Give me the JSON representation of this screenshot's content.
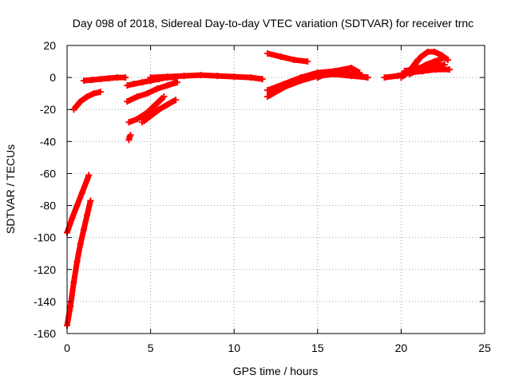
{
  "chart_data": {
    "type": "scatter",
    "title": "Day 098 of 2018, Sidereal Day-to-day VTEC variation (SDTVAR) for receiver trnc",
    "xlabel": "GPS time / hours",
    "ylabel": "SDTVAR / TECUs",
    "xlim": [
      0,
      25
    ],
    "ylim": [
      -160,
      20
    ],
    "xticks": [
      "0",
      "5",
      "10",
      "15",
      "20",
      "25"
    ],
    "yticks": [
      "20",
      "0",
      "-20",
      "-40",
      "-60",
      "-80",
      "-100",
      "-120",
      "-140",
      "-160"
    ],
    "grid": true,
    "marker": "plus",
    "color": "#ff0000",
    "segments": [
      {
        "x": [
          0.0,
          0.3,
          0.6,
          0.9,
          1.2,
          1.3
        ],
        "y": [
          -97,
          -88,
          -80,
          -72,
          -64,
          -61
        ]
      },
      {
        "x": [
          0.0,
          0.2,
          0.4,
          0.6,
          0.8,
          1.0,
          1.2,
          1.4
        ],
        "y": [
          -155,
          -143,
          -128,
          -115,
          -104,
          -95,
          -86,
          -77
        ]
      },
      {
        "x": [
          0.4,
          0.8,
          1.2,
          1.6,
          2.0
        ],
        "y": [
          -20,
          -15,
          -12,
          -10,
          -9
        ]
      },
      {
        "x": [
          1.0,
          1.5,
          2.0,
          2.5,
          3.0,
          3.5
        ],
        "y": [
          -2,
          -1.5,
          -1,
          -0.5,
          0,
          0
        ]
      },
      {
        "x": [
          3.7,
          3.75,
          3.8
        ],
        "y": [
          -39,
          -37,
          -36
        ]
      },
      {
        "x": [
          3.6,
          4.0,
          4.5,
          5.0,
          5.5,
          6.0,
          6.5
        ],
        "y": [
          -5,
          -4,
          -3,
          -2,
          -1,
          0,
          0
        ]
      },
      {
        "x": [
          3.6,
          4.2,
          4.8,
          5.4,
          6.0,
          6.6
        ],
        "y": [
          -15,
          -12,
          -10,
          -7,
          -5,
          -3
        ]
      },
      {
        "x": [
          3.7,
          4.2,
          4.8,
          5.3,
          5.8
        ],
        "y": [
          -28,
          -26,
          -22,
          -17,
          -12
        ]
      },
      {
        "x": [
          4.5,
          5.0,
          5.5,
          6.0,
          6.5
        ],
        "y": [
          -28,
          -24,
          -20,
          -17,
          -14
        ]
      },
      {
        "x": [
          5.0,
          6.0,
          7.0,
          8.0,
          9.0,
          10.0,
          11.0,
          11.7
        ],
        "y": [
          0,
          0.5,
          1,
          1.5,
          1,
          0.5,
          0,
          -1
        ]
      },
      {
        "x": [
          12.0,
          12.8,
          13.6,
          14.4
        ],
        "y": [
          15,
          13,
          11,
          10
        ]
      },
      {
        "x": [
          12.0,
          13.0,
          14.0,
          15.0,
          16.0,
          17.0,
          18.0
        ],
        "y": [
          -8,
          -4,
          0,
          3,
          4,
          2,
          0
        ]
      },
      {
        "x": [
          12.0,
          13.0,
          14.0,
          15.0,
          16.0,
          17.0,
          18.0
        ],
        "y": [
          -12,
          -6,
          -2,
          1,
          2,
          1,
          0
        ]
      },
      {
        "x": [
          15.0,
          16.0,
          17.0,
          17.5
        ],
        "y": [
          0,
          4,
          6,
          3
        ]
      },
      {
        "x": [
          19.0,
          19.8,
          20.5
        ],
        "y": [
          0,
          1,
          3
        ]
      },
      {
        "x": [
          20.0,
          20.5,
          21.0
        ],
        "y": [
          0,
          4,
          11
        ]
      },
      {
        "x": [
          20.5,
          21.0,
          21.5,
          22.0,
          22.5
        ],
        "y": [
          2,
          5,
          8,
          10,
          12
        ]
      },
      {
        "x": [
          20.8,
          21.2,
          21.6,
          22.0,
          22.4,
          22.8
        ],
        "y": [
          8,
          13,
          16,
          16,
          14,
          11
        ]
      },
      {
        "x": [
          20.2,
          21.0,
          21.8,
          22.6
        ],
        "y": [
          4,
          6,
          7,
          8
        ]
      },
      {
        "x": [
          20.5,
          21.3,
          22.1,
          22.9
        ],
        "y": [
          3,
          4,
          5,
          5
        ]
      }
    ]
  }
}
